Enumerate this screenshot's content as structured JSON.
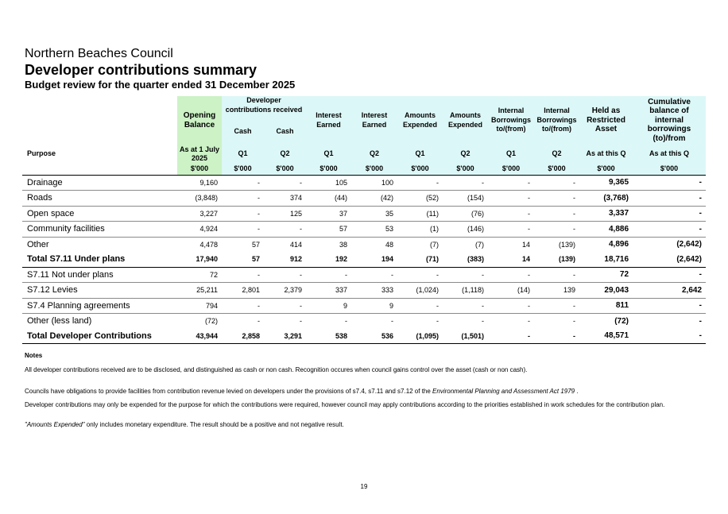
{
  "header": {
    "org": "Northern Beaches Council",
    "title": "Developer contributions summary",
    "subtitle": "Budget review for the quarter ended 31 December 2025"
  },
  "table": {
    "purpose_label": "Purpose",
    "h_opening": "Opening Balance",
    "h_dev": "Developer contributions received",
    "h_cash1": "Cash",
    "h_cash2": "Cash",
    "h_int1": "Interest Earned",
    "h_int2": "Interest Earned",
    "h_amt1": "Amounts Expended",
    "h_amt2": "Amounts Expended",
    "h_ib1": "Internal Borrowings to/(from)",
    "h_ib2": "Internal Borrowings to/(from)",
    "h_held": "Held as Restricted Asset",
    "h_cum": "Cumulative balance of internal borrowings (to)/from",
    "periods": [
      "As at 1 July 2025",
      "Q1",
      "Q2",
      "Q1",
      "Q2",
      "Q1",
      "Q2",
      "Q1",
      "Q2",
      "As at this Q",
      "As at this Q"
    ],
    "units": [
      "$'000",
      "$'000",
      "$'000",
      "$'000",
      "$'000",
      "$'000",
      "$'000",
      "$'000",
      "$'000",
      "$'000",
      "$'000"
    ],
    "rows": [
      {
        "label": "Drainage",
        "v": [
          "9,160",
          "-",
          "-",
          "105",
          "100",
          "-",
          "-",
          "-",
          "-",
          "9,365",
          "-"
        ]
      },
      {
        "label": "Roads",
        "v": [
          "(3,848)",
          "-",
          "374",
          "(44)",
          "(42)",
          "(52)",
          "(154)",
          "-",
          "-",
          "(3,768)",
          "-"
        ]
      },
      {
        "label": "Open space",
        "v": [
          "3,227",
          "-",
          "125",
          "37",
          "35",
          "(11)",
          "(76)",
          "-",
          "-",
          "3,337",
          "-"
        ]
      },
      {
        "label": "Community facilities",
        "v": [
          "4,924",
          "-",
          "-",
          "57",
          "53",
          "(1)",
          "(146)",
          "-",
          "-",
          "4,886",
          "-"
        ]
      },
      {
        "label": "Other",
        "v": [
          "4,478",
          "57",
          "414",
          "38",
          "48",
          "(7)",
          "(7)",
          "14",
          "(139)",
          "4,896",
          "(2,642)"
        ]
      },
      {
        "label": "Total S7.11 Under plans",
        "v": [
          "17,940",
          "57",
          "912",
          "192",
          "194",
          "(71)",
          "(383)",
          "14",
          "(139)",
          "18,716",
          "(2,642)"
        ]
      },
      {
        "label": "S7.11 Not under plans",
        "v": [
          "72",
          "-",
          "-",
          "-",
          "-",
          "-",
          "-",
          "-",
          "-",
          "72",
          "-"
        ]
      },
      {
        "label": "S7.12 Levies",
        "v": [
          "25,211",
          "2,801",
          "2,379",
          "337",
          "333",
          "(1,024)",
          "(1,118)",
          "(14)",
          "139",
          "29,043",
          "2,642"
        ]
      },
      {
        "label": "S7.4 Planning agreements",
        "v": [
          "794",
          "-",
          "-",
          "9",
          "9",
          "-",
          "-",
          "-",
          "-",
          "811",
          "-"
        ]
      },
      {
        "label": "Other (less land)",
        "v": [
          "(72)",
          "-",
          "-",
          "-",
          "-",
          "-",
          "-",
          "-",
          "-",
          "(72)",
          "-"
        ]
      },
      {
        "label": "Total Developer Contributions",
        "v": [
          "43,944",
          "2,858",
          "3,291",
          "538",
          "536",
          "(1,095)",
          "(1,501)",
          "-",
          "-",
          "48,571",
          "-"
        ]
      }
    ]
  },
  "notes": {
    "heading": "Notes",
    "n1": "All developer contributions received  are to be disclosed, and distinguished as cash or non cash.  Recognition occures when council gains control over the asset (cash or non cash).",
    "n2a": "Councils have obligations to provide facilities from contribution revenue levied on developers under the provisions of s7.4, s7.11 and s7.12 of the ",
    "n2b": "Environmental Planning and Assessment Act 1979",
    "n2c": " .",
    "n3": "Developer contributions may only be expended for the purpose for which the contributions were required, however council may apply contributions according to the priorities established in work schedules for the contribution plan.",
    "n4a": "\"Amounts Expended\"",
    "n4b": " only includes monetary expenditure.  The result should be a positive and not negative result."
  },
  "page_number": "19"
}
